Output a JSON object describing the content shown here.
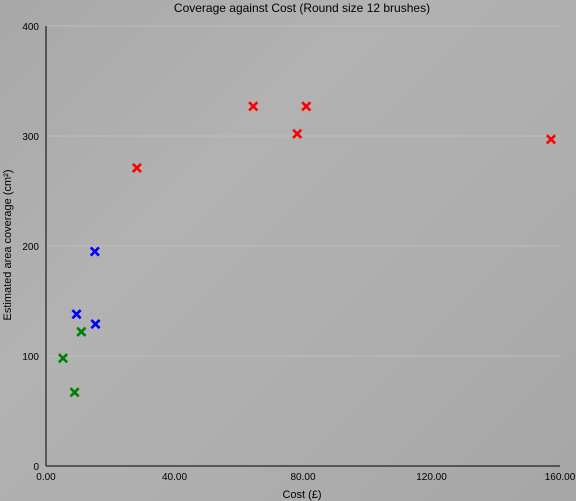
{
  "chart_data": {
    "type": "scatter",
    "title": "Coverage against Cost (Round size 12 brushes)",
    "xlabel": "Cost (£)",
    "ylabel": "Estimated area coverage (cm²)",
    "xlim": [
      0,
      160
    ],
    "ylim": [
      0,
      400
    ],
    "x_ticks": [
      "0.00",
      "40.00",
      "80.00",
      "120.00",
      "160.00"
    ],
    "y_ticks": [
      "0",
      "100",
      "200",
      "300",
      "400"
    ],
    "grid": "horizontal",
    "legend": "none",
    "series": [
      {
        "color": "#ff0000",
        "x": [
          28.3,
          64.5,
          78.2,
          81.0,
          157.2
        ],
        "y": [
          271,
          327,
          302,
          327,
          297
        ]
      },
      {
        "color": "#0000ff",
        "x": [
          9.5,
          15.2,
          15.4
        ],
        "y": [
          138,
          195,
          129
        ]
      },
      {
        "color": "#008000",
        "x": [
          5.3,
          8.9,
          11.0
        ],
        "y": [
          98,
          67,
          122
        ]
      }
    ]
  }
}
